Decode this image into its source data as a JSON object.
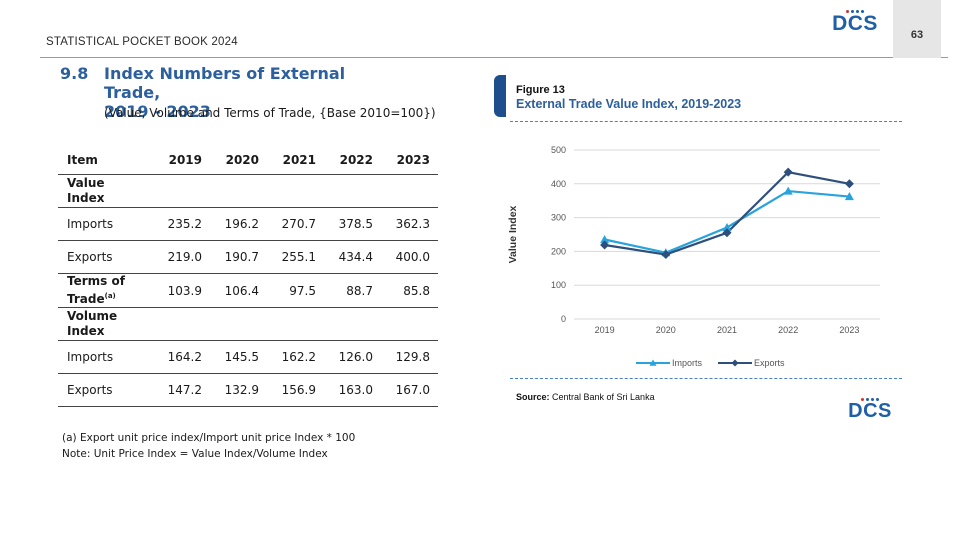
{
  "header": {
    "title": "STATISTICAL POCKET BOOK 2024",
    "page_number": "63",
    "logo_text": "DCS"
  },
  "section": {
    "number": "9.8",
    "title_line1": "Index Numbers of External Trade,",
    "title_line2": "2019 - 2023",
    "subtitle": "(Value, Volume and Terms of Trade, {Base 2010=100})"
  },
  "table": {
    "columns": [
      "Item",
      "2019",
      "2020",
      "2021",
      "2022",
      "2023"
    ],
    "rows": [
      {
        "label": "Value Index",
        "bold": true,
        "values": [
          "",
          "",
          "",
          "",
          ""
        ]
      },
      {
        "label": "Imports",
        "bold": false,
        "values": [
          "235.2",
          "196.2",
          "270.7",
          "378.5",
          "362.3"
        ]
      },
      {
        "label": "Exports",
        "bold": false,
        "values": [
          "219.0",
          "190.7",
          "255.1",
          "434.4",
          "400.0"
        ]
      },
      {
        "label": "Terms of Trade",
        "sup": "(a)",
        "bold": true,
        "values": [
          "103.9",
          "106.4",
          "97.5",
          "88.7",
          "85.8"
        ]
      },
      {
        "label": "Volume Index",
        "bold": true,
        "values": [
          "",
          "",
          "",
          "",
          ""
        ]
      },
      {
        "label": "Imports",
        "bold": false,
        "values": [
          "164.2",
          "145.5",
          "162.2",
          "126.0",
          "129.8"
        ]
      },
      {
        "label": "Exports",
        "bold": false,
        "values": [
          "147.2",
          "132.9",
          "156.9",
          "163.0",
          "167.0"
        ]
      }
    ]
  },
  "notes": {
    "note_a": "(a)  Export unit price index/Import unit price Index * 100",
    "note_b": "Note: Unit Price Index = Value Index/Volume Index"
  },
  "figure": {
    "label": "Figure 13",
    "title": "External Trade Value Index, 2019-2023",
    "source_label": "Source:",
    "source_text": " Central Bank of Sri Lanka"
  },
  "colors": {
    "imports": "#29a3dc",
    "exports": "#2e4f7c",
    "heading": "#2c5f9e",
    "logo": "#1e5fa8"
  },
  "chart_data": {
    "type": "line",
    "title": "",
    "xlabel": "",
    "ylabel": "Value Index",
    "x": [
      "2019",
      "2020",
      "2021",
      "2022",
      "2023"
    ],
    "ylim": [
      0,
      500
    ],
    "yticks": [
      0,
      100,
      200,
      300,
      400,
      500
    ],
    "grid": true,
    "legend_position": "bottom",
    "series": [
      {
        "name": "Imports",
        "values": [
          235.2,
          196.2,
          270.7,
          378.5,
          362.3
        ],
        "color": "#29a3dc",
        "marker": "triangle"
      },
      {
        "name": "Exports",
        "values": [
          219.0,
          190.7,
          255.1,
          434.4,
          400.0
        ],
        "color": "#2e4f7c",
        "marker": "diamond"
      }
    ]
  }
}
